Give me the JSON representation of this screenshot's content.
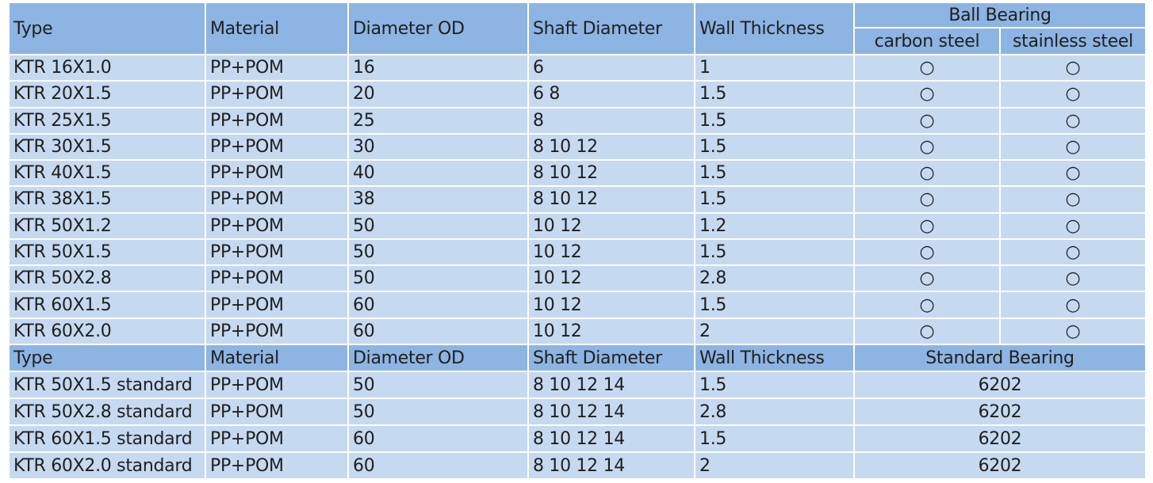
{
  "table1": {
    "header": [
      "Type",
      "Material",
      "Diameter OD",
      "Shaft Diameter",
      "Wall Thickness"
    ],
    "group": "Ball Bearing",
    "subheaders": [
      "carbon steel",
      "stainless steel"
    ],
    "rows": [
      [
        "KTR 16X1.0",
        "PP+POM",
        "16",
        "6",
        "1",
        "○",
        "○"
      ],
      [
        "KTR 20X1.5",
        "PP+POM",
        "20",
        "6 8",
        "1.5",
        "○",
        "○"
      ],
      [
        "KTR 25X1.5",
        "PP+POM",
        "25",
        "8",
        "1.5",
        "○",
        "○"
      ],
      [
        "KTR 30X1.5",
        "PP+POM",
        "30",
        "8 10 12",
        "1.5",
        "○",
        "○"
      ],
      [
        "KTR 40X1.5",
        "PP+POM",
        "40",
        "8 10 12",
        "1.5",
        "○",
        "○"
      ],
      [
        "KTR 38X1.5",
        "PP+POM",
        "38",
        "8 10 12",
        "1.5",
        "○",
        "○"
      ],
      [
        "KTR 50X1.2",
        "PP+POM",
        "50",
        "10 12",
        "1.2",
        "○",
        "○"
      ],
      [
        "KTR 50X1.5",
        "PP+POM",
        "50",
        "10 12",
        "1.5",
        "○",
        "○"
      ],
      [
        "KTR 50X2.8",
        "PP+POM",
        "50",
        "10 12",
        "2.8",
        "○",
        "○"
      ],
      [
        "KTR 60X1.5",
        "PP+POM",
        "60",
        "10 12",
        "1.5",
        "○",
        "○"
      ],
      [
        "KTR 60X2.0",
        "PP+POM",
        "60",
        "10 12",
        "2",
        "○",
        "○"
      ]
    ]
  },
  "table2": {
    "header": [
      "Type",
      "Material",
      "Diameter OD",
      "Shaft Diameter",
      "Wall Thickness"
    ],
    "group": "Standard Bearing",
    "rows": [
      [
        "KTR 50X1.5 standard",
        "PP+POM",
        "50",
        "8 10 12 14",
        "1.5",
        "6202"
      ],
      [
        "KTR 50X2.8 standard",
        "PP+POM",
        "50",
        "8 10 12 14",
        "2.8",
        "6202"
      ],
      [
        "KTR 60X1.5 standard",
        "PP+POM",
        "60",
        "8 10 12 14",
        "1.5",
        "6202"
      ],
      [
        "KTR 60X2.0 standard",
        "PP+POM",
        "60",
        "8 10 12 14",
        "2",
        "6202"
      ]
    ]
  }
}
